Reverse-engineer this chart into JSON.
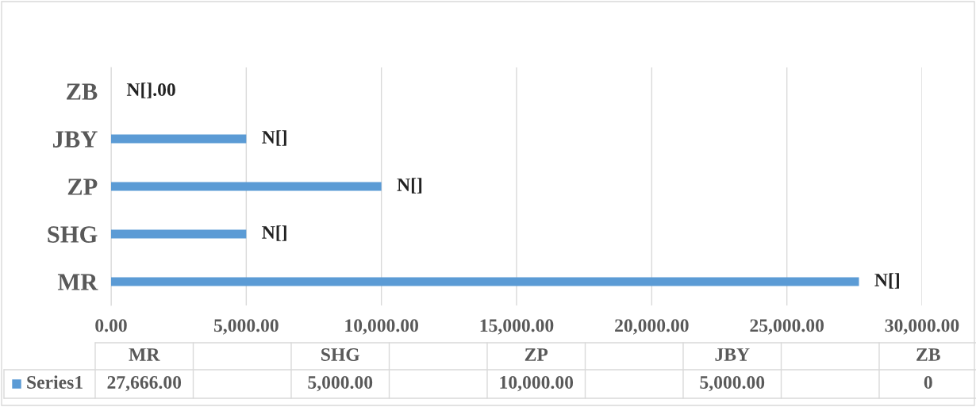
{
  "chart_data": {
    "type": "bar",
    "orientation": "horizontal",
    "categories": [
      "ZB",
      "JBY",
      "ZP",
      "SHG",
      "MR"
    ],
    "series": [
      {
        "name": "Series1",
        "color": "#5b9bd5",
        "values": [
          0,
          5000,
          10000,
          5000,
          27666
        ],
        "value_labels": [
          "N[].00",
          "N[]",
          "N[]",
          "N[]",
          "N[]"
        ]
      }
    ],
    "xlim": [
      0,
      30000
    ],
    "xticks": [
      {
        "value": 0,
        "label": "0.00"
      },
      {
        "value": 5000,
        "label": "5,000.00"
      },
      {
        "value": 10000,
        "label": "10,000.00"
      },
      {
        "value": 15000,
        "label": "15,000.00"
      },
      {
        "value": 20000,
        "label": "20,000.00"
      },
      {
        "value": 25000,
        "label": "25,000.00"
      },
      {
        "value": 30000,
        "label": "30,000.00"
      }
    ],
    "grid": "x",
    "legend": "bottom",
    "annotations": [
      "27,666.00",
      "5,000.00",
      "10,000.00",
      "5,000.00",
      "0"
    ]
  }
}
